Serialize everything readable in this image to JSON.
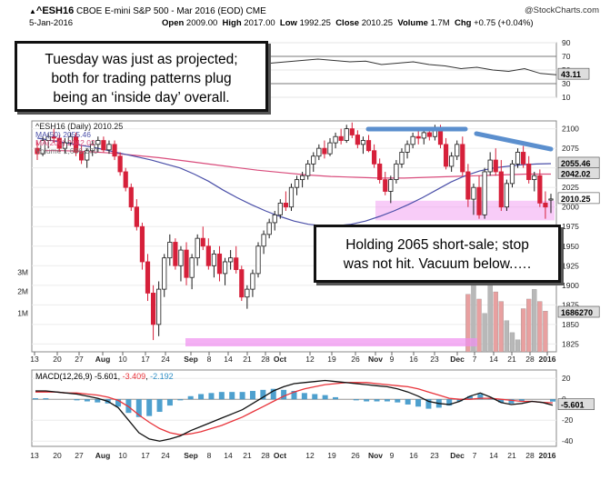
{
  "header": {
    "symbol": "^ESH16",
    "description": "CBOE E-mini S&P 500 - Mar 2016 (EOD)",
    "exchange": "CME",
    "date": "5-Jan-2016",
    "source": "@StockCharts.com",
    "open_label": "Open",
    "open": "2009.00",
    "high_label": "High",
    "high": "2017.00",
    "low_label": "Low",
    "low": "1992.25",
    "close_label": "Close",
    "close": "2010.25",
    "volume_label": "Volume",
    "volume": "1.7M",
    "chg_label": "Chg",
    "chg": "+0.75 (+0.04%)",
    "chg_arrow": "▲"
  },
  "annotations": {
    "top_left": [
      "Tuesday was just as projected;",
      "both for trading patterns plug",
      "being an ‘inside day’ overall."
    ],
    "middle_right": [
      "Holding 2065 short-sale; stop",
      "was not hit. Vacuum below.…."
    ]
  },
  "legend": {
    "main": "^ESH16 (Daily) 2010.25",
    "ma50": "MA(50) 2055.46",
    "ma200": "MA(200) 2042.02",
    "volume": "Volume 1,686,270",
    "macd_name": "MACD(12,26,9)",
    "macd_line": "-5.601",
    "macd_signal": "-3.409",
    "macd_hist": "-2.192"
  },
  "value_tags": {
    "ma50": "2055.46",
    "ma200": "2042.02",
    "close": "2010.25",
    "volume": "1686270",
    "macd": "-5.601",
    "rsi": "43.11"
  },
  "colors": {
    "up": "#1a1a1a",
    "down": "#d6203a",
    "ma50": "#4a4fa8",
    "ma200": "#d94c7c",
    "rsi": "#333333",
    "macd_line": "#111111",
    "signal": "#e8333a",
    "hist": "#2f8fc6",
    "volume_up": "#b8b8b8",
    "volume_down": "#e8a0a0",
    "pink_zone": "#f08ef0",
    "resistance": "#5b8fce"
  },
  "chart_data": [
    {
      "type": "line",
      "title": "RSI",
      "yticks": [
        10,
        30,
        50,
        70,
        90
      ],
      "ylim": [
        10,
        90
      ],
      "reference_lines": [
        30,
        70
      ],
      "series": [
        {
          "values": [
            51,
            52,
            50,
            46,
            44,
            43,
            41,
            34,
            28,
            25,
            32,
            42,
            50,
            55,
            58,
            60,
            62,
            64,
            66,
            64,
            62,
            63,
            58,
            60,
            62,
            58,
            56,
            52,
            54,
            50,
            48,
            52,
            45,
            43
          ]
        }
      ]
    },
    {
      "type": "candlestick",
      "title": "^ESH16 (Daily) 2010.25",
      "x_ticks": [
        "13",
        "20",
        "27",
        "Aug",
        "10",
        "17",
        "24",
        "Sep",
        "8",
        "14",
        "21",
        "28",
        "Oct",
        "12",
        "19",
        "26",
        "Nov",
        "9",
        "16",
        "23",
        "Dec",
        "7",
        "14",
        "21",
        "28",
        "2016"
      ],
      "yticks": [
        1825,
        1850,
        1875,
        1900,
        1925,
        1950,
        1975,
        2000,
        2025,
        2050,
        2075,
        2100
      ],
      "ylim": [
        1815,
        2110
      ],
      "volume_ticks": [
        "3M",
        "2M",
        "1M"
      ],
      "ohlc": [
        [
          2075,
          2085,
          2060,
          2068
        ],
        [
          2068,
          2090,
          2065,
          2085
        ],
        [
          2085,
          2095,
          2075,
          2090
        ],
        [
          2090,
          2100,
          2082,
          2088
        ],
        [
          2088,
          2092,
          2070,
          2075
        ],
        [
          2075,
          2088,
          2068,
          2082
        ],
        [
          2082,
          2095,
          2078,
          2090
        ],
        [
          2090,
          2095,
          2065,
          2070
        ],
        [
          2070,
          2078,
          2055,
          2060
        ],
        [
          2060,
          2075,
          2050,
          2072
        ],
        [
          2072,
          2085,
          2065,
          2080
        ],
        [
          2080,
          2090,
          2070,
          2085
        ],
        [
          2085,
          2090,
          2070,
          2073
        ],
        [
          2073,
          2085,
          2068,
          2080
        ],
        [
          2080,
          2085,
          2060,
          2065
        ],
        [
          2065,
          2070,
          2040,
          2045
        ],
        [
          2045,
          2050,
          2020,
          2025
        ],
        [
          2025,
          2030,
          1995,
          2000
        ],
        [
          2000,
          2010,
          1970,
          1975
        ],
        [
          1975,
          1980,
          1920,
          1930
        ],
        [
          1930,
          1940,
          1880,
          1890
        ],
        [
          1890,
          1900,
          1830,
          1850
        ],
        [
          1850,
          1905,
          1835,
          1895
        ],
        [
          1895,
          1940,
          1885,
          1935
        ],
        [
          1935,
          1965,
          1925,
          1955
        ],
        [
          1955,
          1960,
          1920,
          1925
        ],
        [
          1925,
          1950,
          1905,
          1945
        ],
        [
          1945,
          1955,
          1900,
          1910
        ],
        [
          1910,
          1940,
          1895,
          1935
        ],
        [
          1935,
          1965,
          1925,
          1960
        ],
        [
          1960,
          1975,
          1945,
          1950
        ],
        [
          1950,
          1960,
          1920,
          1925
        ],
        [
          1925,
          1945,
          1910,
          1940
        ],
        [
          1940,
          1950,
          1905,
          1915
        ],
        [
          1915,
          1935,
          1900,
          1930
        ],
        [
          1930,
          1945,
          1920,
          1935
        ],
        [
          1935,
          1950,
          1915,
          1920
        ],
        [
          1920,
          1925,
          1880,
          1885
        ],
        [
          1885,
          1900,
          1870,
          1895
        ],
        [
          1895,
          1920,
          1885,
          1915
        ],
        [
          1915,
          1955,
          1910,
          1950
        ],
        [
          1950,
          1970,
          1940,
          1965
        ],
        [
          1965,
          1985,
          1960,
          1980
        ],
        [
          1980,
          1995,
          1970,
          1990
        ],
        [
          1990,
          2010,
          1985,
          2005
        ],
        [
          2005,
          2020,
          1995,
          2000
        ],
        [
          2000,
          2030,
          1995,
          2025
        ],
        [
          2025,
          2040,
          2015,
          2035
        ],
        [
          2035,
          2045,
          2025,
          2040
        ],
        [
          2040,
          2060,
          2035,
          2055
        ],
        [
          2055,
          2070,
          2045,
          2065
        ],
        [
          2065,
          2080,
          2060,
          2075
        ],
        [
          2075,
          2085,
          2062,
          2068
        ],
        [
          2068,
          2088,
          2065,
          2082
        ],
        [
          2082,
          2095,
          2075,
          2090
        ],
        [
          2090,
          2100,
          2080,
          2085
        ],
        [
          2085,
          2105,
          2082,
          2100
        ],
        [
          2100,
          2108,
          2088,
          2092
        ],
        [
          2092,
          2098,
          2075,
          2080
        ],
        [
          2080,
          2090,
          2068,
          2085
        ],
        [
          2085,
          2092,
          2070,
          2072
        ],
        [
          2072,
          2080,
          2050,
          2055
        ],
        [
          2055,
          2062,
          2030,
          2035
        ],
        [
          2035,
          2045,
          2015,
          2020
        ],
        [
          2020,
          2040,
          2005,
          2035
        ],
        [
          2035,
          2060,
          2030,
          2055
        ],
        [
          2055,
          2075,
          2050,
          2070
        ],
        [
          2070,
          2085,
          2062,
          2080
        ],
        [
          2080,
          2095,
          2075,
          2090
        ],
        [
          2090,
          2100,
          2080,
          2088
        ],
        [
          2088,
          2098,
          2080,
          2095
        ],
        [
          2095,
          2102,
          2085,
          2090
        ],
        [
          2090,
          2105,
          2085,
          2100
        ],
        [
          2100,
          2105,
          2075,
          2080
        ],
        [
          2080,
          2088,
          2048,
          2052
        ],
        [
          2052,
          2070,
          2045,
          2065
        ],
        [
          2065,
          2085,
          2060,
          2080
        ],
        [
          2080,
          2090,
          2040,
          2045
        ],
        [
          2045,
          2055,
          2000,
          2010
        ],
        [
          2010,
          2030,
          1990,
          2025
        ],
        [
          2025,
          2040,
          1985,
          1990
        ],
        [
          1990,
          2050,
          1985,
          2045
        ],
        [
          2045,
          2070,
          2040,
          2060
        ],
        [
          2060,
          2075,
          2040,
          2045
        ],
        [
          2045,
          2060,
          1995,
          2000
        ],
        [
          2000,
          2035,
          1995,
          2030
        ],
        [
          2030,
          2060,
          2025,
          2055
        ],
        [
          2055,
          2075,
          2050,
          2070
        ],
        [
          2070,
          2078,
          2050,
          2055
        ],
        [
          2055,
          2065,
          2030,
          2035
        ],
        [
          2035,
          2045,
          2020,
          2040
        ],
        [
          2040,
          2048,
          2000,
          2005
        ],
        [
          2005,
          2020,
          1985,
          2000
        ],
        [
          2009,
          2017,
          1992.25,
          2010.25
        ]
      ],
      "ma50": [
        2088,
        2085,
        2082,
        2079,
        2076,
        2072,
        2068,
        2064,
        2060,
        2055,
        2050,
        2042,
        2033,
        2022,
        2012,
        2003,
        1995,
        1988,
        1982,
        1978,
        1976,
        1976,
        1978,
        1982,
        1988,
        1995,
        2003,
        2012,
        2022,
        2032,
        2040,
        2046,
        2050,
        2052,
        2054,
        2055,
        2055.46
      ],
      "ma200": [
        2072,
        2072,
        2071,
        2069,
        2066,
        2063,
        2059,
        2055,
        2051,
        2047,
        2044,
        2041,
        2039,
        2038,
        2037,
        2037,
        2038,
        2039,
        2040,
        2041,
        2042,
        2042.02
      ],
      "volume_millions": [
        0.3,
        0.3,
        0.3,
        0.3,
        0.3,
        0.3,
        0.3,
        0.3,
        0.3,
        0.3,
        0.3,
        0.3,
        0.3,
        0.3,
        0.3,
        0.3,
        0.3,
        0.3,
        0.3,
        0.3,
        0.3,
        0.3,
        0.3,
        0.3,
        0.3,
        0.3,
        0.3,
        0.3,
        0.3,
        0.3,
        0.3,
        0.3,
        0.3,
        0.3,
        0.3,
        0.3,
        0.3,
        0.3,
        0.3,
        0.3,
        0.3,
        0.3,
        0.3,
        0.3,
        0.3,
        0.3,
        0.3,
        0.3,
        0.3,
        0.3,
        0.3,
        0.3,
        0.3,
        0.3,
        0.3,
        0.3,
        0.3,
        0.3,
        0.3,
        0.3,
        0.3,
        0.3,
        0.3,
        0.3,
        0.3,
        0.3,
        0.3,
        0.3,
        0.3,
        0.3,
        0.3,
        0.3,
        0.3,
        0.3,
        0.3,
        0.3,
        0.3,
        0.3,
        2.4,
        3.2,
        2.2,
        1.6,
        2.8,
        2.5,
        2.1,
        1.3,
        0.8,
        0.5,
        1.8,
        2.2,
        2.6,
        2.1,
        1.7
      ]
    },
    {
      "type": "line",
      "title": "MACD(12,26,9) -5.601, -3.409, -2.192",
      "yticks": [
        -40,
        -20,
        0,
        20
      ],
      "ylim": [
        -45,
        28
      ],
      "series": [
        {
          "name": "MACD",
          "values": [
            8,
            8,
            7,
            6,
            5,
            3,
            1,
            -2,
            -8,
            -20,
            -32,
            -38,
            -40,
            -38,
            -35,
            -30,
            -26,
            -22,
            -18,
            -14,
            -10,
            -4,
            2,
            8,
            12,
            15,
            16,
            17,
            18,
            17,
            16,
            15,
            14,
            13,
            12,
            10,
            7,
            3,
            -2,
            -4,
            -5,
            -2,
            3,
            6,
            2,
            -3,
            -5,
            -4,
            -2,
            -3,
            -5.601
          ]
        },
        {
          "name": "Signal",
          "values": [
            7,
            7,
            7,
            6,
            6,
            5,
            4,
            2,
            -1,
            -7,
            -15,
            -22,
            -28,
            -32,
            -34,
            -33,
            -31,
            -28,
            -25,
            -21,
            -17,
            -12,
            -7,
            -2,
            3,
            7,
            10,
            12,
            14,
            15,
            16,
            16,
            16,
            15,
            14,
            13,
            12,
            10,
            7,
            4,
            1,
            0,
            0,
            1,
            1,
            0,
            -1,
            -2,
            -2,
            -3,
            -3.409
          ]
        },
        {
          "name": "Histogram",
          "values": [
            1,
            1,
            0,
            0,
            -1,
            -2,
            -3,
            -4,
            -7,
            -13,
            -17,
            -16,
            -12,
            -6,
            -1,
            3,
            5,
            6,
            7,
            7,
            7,
            8,
            9,
            10,
            9,
            8,
            6,
            5,
            4,
            2,
            0,
            -1,
            -2,
            -2,
            -2,
            -3,
            -5,
            -7,
            -9,
            -8,
            -6,
            -2,
            3,
            5,
            1,
            -3,
            -4,
            -2,
            0,
            0,
            -2.192
          ]
        }
      ]
    }
  ]
}
